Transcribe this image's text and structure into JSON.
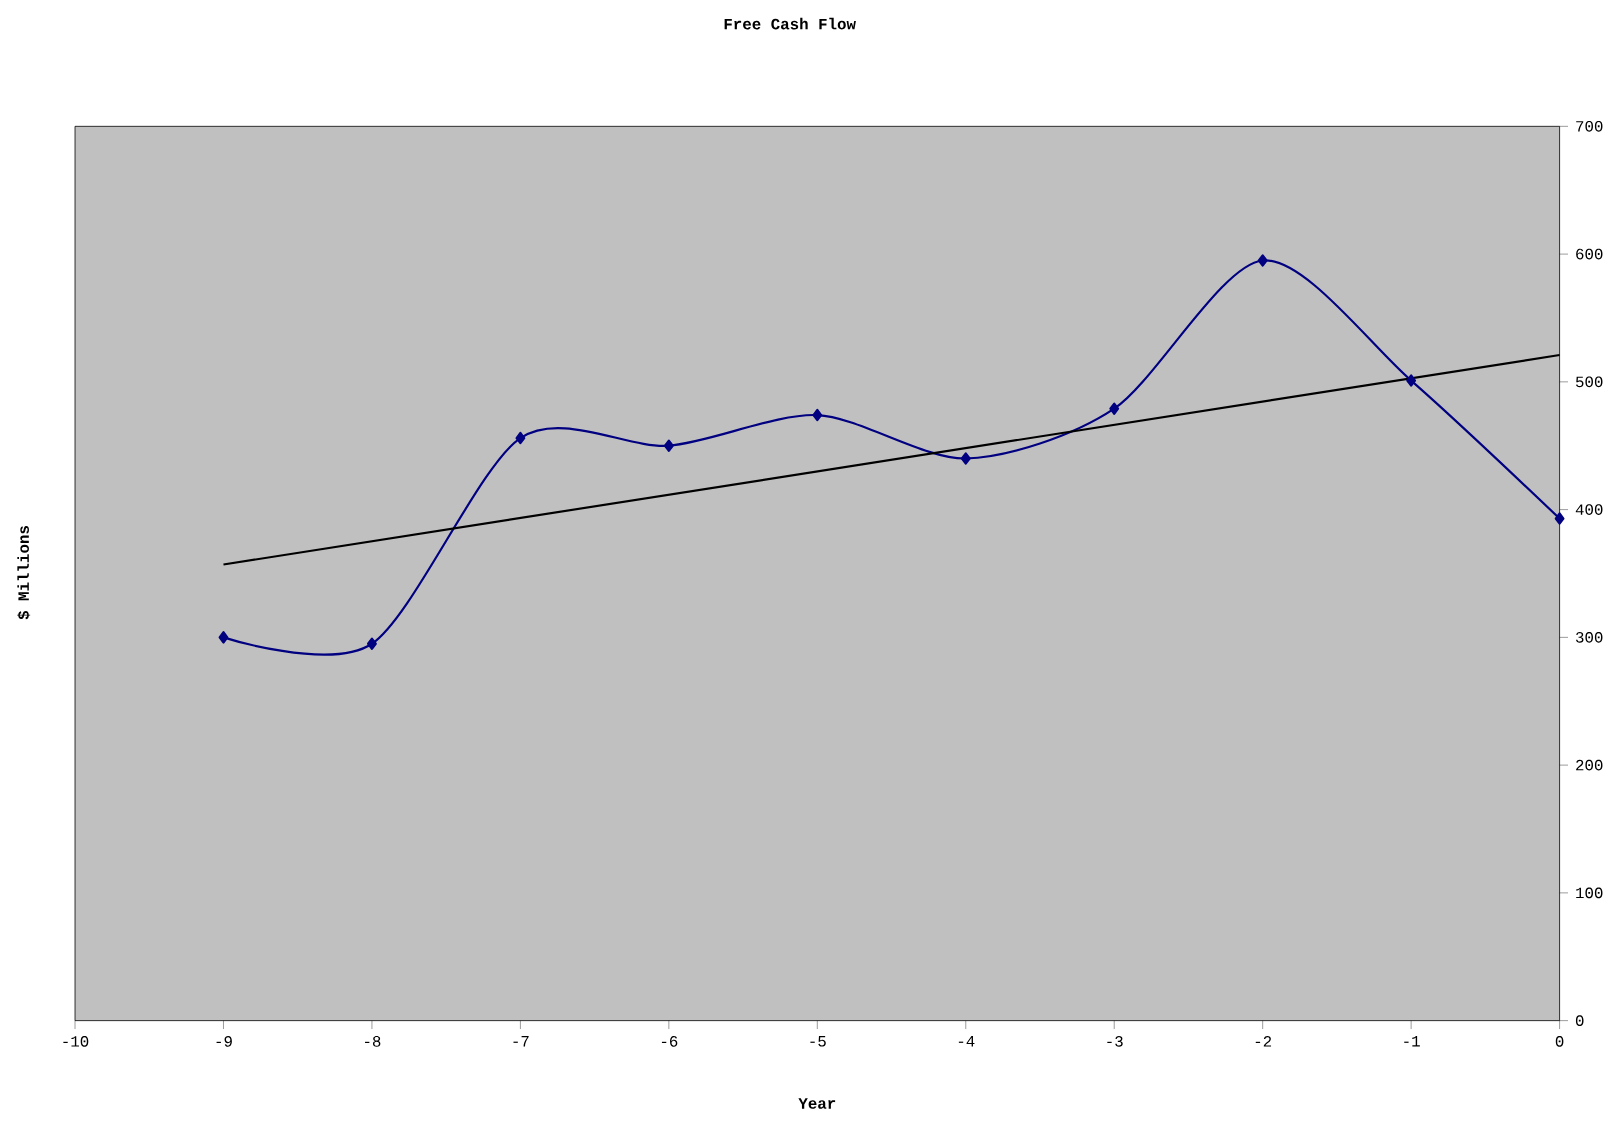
{
  "chart_data": {
    "type": "line",
    "title": "Free Cash Flow",
    "xlabel": "Year",
    "ylabel": "$ Millions",
    "x": [
      -9,
      -8,
      -7,
      -6,
      -5,
      -4,
      -3,
      -2,
      -1,
      0
    ],
    "series": [
      {
        "color": "#000080",
        "values": [
          300,
          295,
          456,
          450,
          474,
          440,
          479,
          595,
          501,
          393
        ]
      },
      {
        "type": "line",
        "x": [
          -9,
          0
        ],
        "color": "#000000",
        "values": [
          357,
          521
        ],
        "marker": "none"
      }
    ],
    "marker": "diamond",
    "grid": false,
    "xlim": [
      -10,
      0
    ],
    "ylim": [
      0,
      700
    ],
    "xticks": [
      -10,
      -9,
      -8,
      -7,
      -6,
      -5,
      -4,
      -3,
      -2,
      -1,
      0
    ],
    "yticks": [
      0,
      100,
      200,
      300,
      400,
      500,
      600,
      700
    ]
  }
}
